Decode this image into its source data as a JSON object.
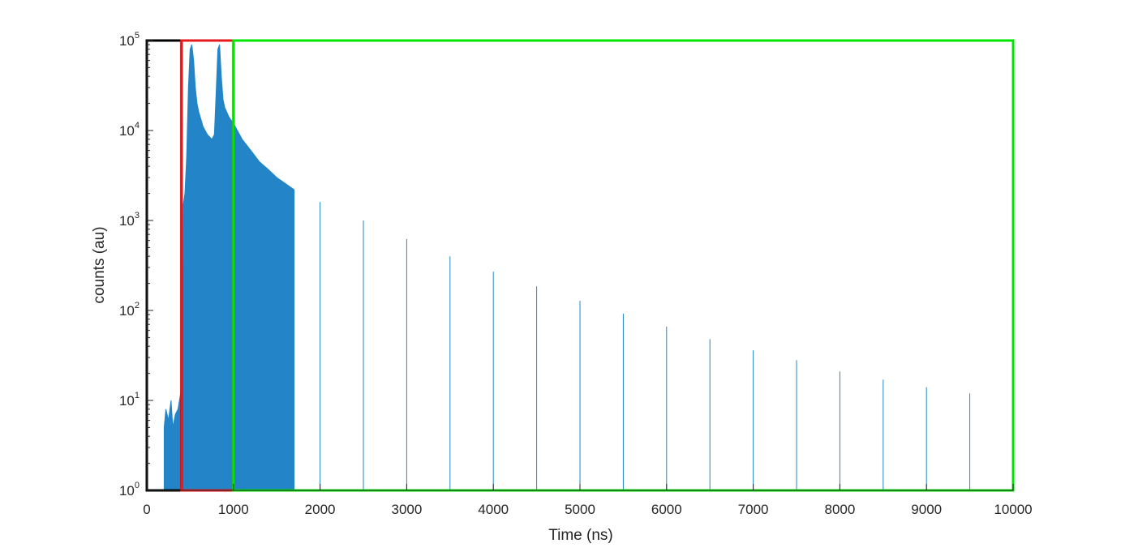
{
  "chart_data": {
    "type": "area",
    "title": "",
    "xlabel": "Time (ns)",
    "ylabel": "counts (au)",
    "x_scale": "linear",
    "y_scale": "log",
    "xlim": [
      0,
      10000
    ],
    "ylim": [
      1,
      100000
    ],
    "x_ticks": [
      0,
      1000,
      2000,
      3000,
      4000,
      5000,
      6000,
      7000,
      8000,
      9000,
      10000
    ],
    "y_ticks": [
      {
        "base": "10",
        "exp": "0"
      },
      {
        "base": "10",
        "exp": "1"
      },
      {
        "base": "10",
        "exp": "2"
      },
      {
        "base": "10",
        "exp": "3"
      },
      {
        "base": "10",
        "exp": "4"
      },
      {
        "base": "10",
        "exp": "5"
      }
    ],
    "grid": false,
    "series": [
      {
        "color": "#2385c8",
        "x": [
          200,
          220,
          250,
          280,
          300,
          330,
          360,
          390,
          405,
          420,
          440,
          460,
          480,
          500,
          520,
          540,
          560,
          580,
          600,
          650,
          700,
          750,
          780,
          800,
          820,
          840,
          860,
          880,
          900,
          950,
          1000,
          1100,
          1200,
          1300,
          1400,
          1500,
          1700,
          2000,
          2500,
          3000,
          3500,
          4000,
          4500,
          5000,
          5500,
          6000,
          6500,
          7000,
          7500,
          8000,
          8500,
          9000,
          9500,
          10000
        ],
        "y": [
          5,
          8,
          6,
          10,
          5,
          7,
          8,
          12,
          2,
          1500,
          2000,
          5000,
          30000,
          80000,
          90000,
          60000,
          30000,
          20000,
          16000,
          11000,
          9000,
          8000,
          9000,
          25000,
          80000,
          90000,
          40000,
          22000,
          18000,
          14000,
          12000,
          8000,
          6000,
          4500,
          3700,
          3000,
          2200,
          1600,
          1000,
          620,
          400,
          270,
          185,
          128,
          92,
          66,
          48,
          36,
          28,
          21,
          17,
          14,
          12,
          10
        ]
      }
    ],
    "regions": [
      {
        "x_range": [
          0,
          400
        ],
        "y_range": [
          1,
          100000
        ],
        "color": "#000000"
      },
      {
        "x_range": [
          400,
          1000
        ],
        "y_range": [
          1,
          100000
        ],
        "color": "#e41a1c"
      },
      {
        "x_range": [
          1000,
          10000
        ],
        "y_range": [
          1,
          100000
        ],
        "color": "#00e600"
      }
    ]
  }
}
